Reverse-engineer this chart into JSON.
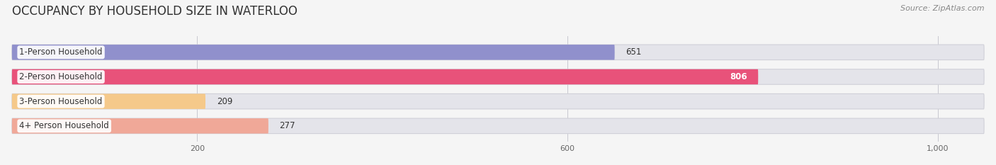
{
  "title": "OCCUPANCY BY HOUSEHOLD SIZE IN WATERLOO",
  "source": "Source: ZipAtlas.com",
  "categories": [
    "1-Person Household",
    "2-Person Household",
    "3-Person Household",
    "4+ Person Household"
  ],
  "values": [
    651,
    806,
    209,
    277
  ],
  "bar_colors": [
    "#9090cc",
    "#e8527a",
    "#f5c98a",
    "#f0a898"
  ],
  "background_color": "#f5f5f5",
  "bar_bg_color": "#e4e4ea",
  "xlim_data": 1050,
  "xticks": [
    200,
    600,
    1000
  ],
  "xtick_labels": [
    "200",
    "600",
    "1,000"
  ],
  "title_fontsize": 12,
  "source_fontsize": 8,
  "label_fontsize": 8.5,
  "value_fontsize": 8.5
}
